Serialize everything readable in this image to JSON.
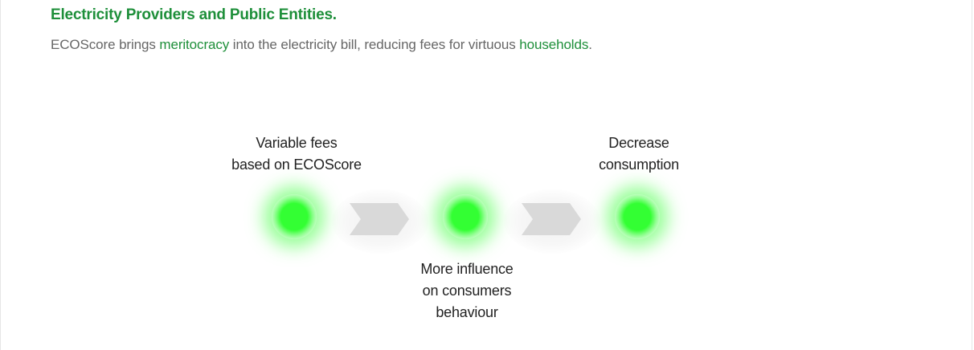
{
  "header": {
    "title": "Electricity Providers and Public Entities."
  },
  "intro": {
    "part1": "ECOScore brings ",
    "highlight1": "meritocracy",
    "part2": " into the electricity bill, reducing fees for virtuous ",
    "highlight2": "households",
    "part3": "."
  },
  "flow": {
    "step1_label": "Variable fees\nbased on ECOScore",
    "step2_label": "More influence\non consumers\nbehaviour",
    "step3_label": "Decrease\nconsumption"
  },
  "colors": {
    "accent": "#1e8f3a",
    "glow": "#33ff33",
    "chevron": "#d9d9d9"
  },
  "icons": {
    "node": "glowing-dot",
    "arrow": "chevron-right"
  }
}
